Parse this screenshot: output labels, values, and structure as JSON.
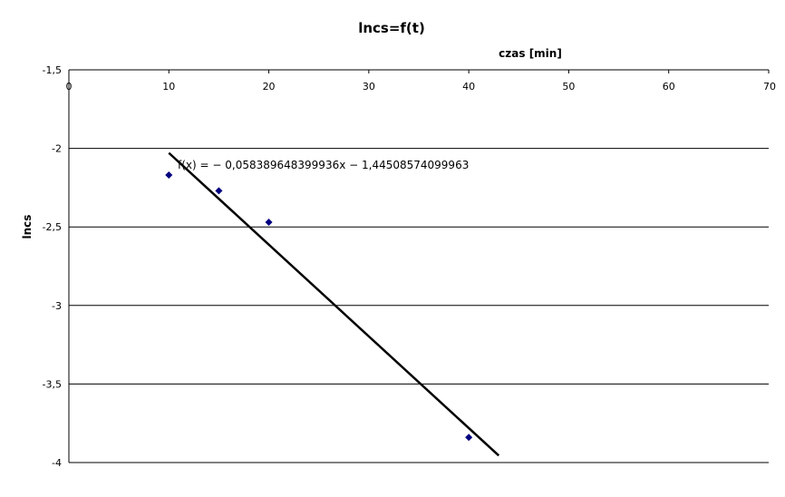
{
  "chart_data": {
    "type": "scatter",
    "title": "lncs=f(t)",
    "xlabel": "czas [min]",
    "ylabel": "lncs",
    "xlim": [
      0,
      70
    ],
    "ylim": [
      -4,
      -1.5
    ],
    "x_ticks": [
      "0",
      "10",
      "20",
      "30",
      "40",
      "50",
      "60",
      "70"
    ],
    "y_ticks": [
      "-1,5",
      "-2",
      "-2,5",
      "-3",
      "-3,5",
      "-4"
    ],
    "grid": "horizontal",
    "x_axis_position": "top",
    "series": [
      {
        "points": [
          {
            "x": 10,
            "y": -2.17
          },
          {
            "x": 15,
            "y": -2.27
          },
          {
            "x": 20,
            "y": -2.47
          },
          {
            "x": 40,
            "y": -3.84
          }
        ],
        "color": "#000080",
        "marker": "diamond"
      }
    ],
    "trendline": {
      "slope": -0.058389648399936,
      "intercept": -1.44508574099963,
      "x_range": [
        10,
        43
      ],
      "color": "#000000",
      "equation": "f(x) = − 0,058389648399936x − 1,44508574099963"
    }
  }
}
